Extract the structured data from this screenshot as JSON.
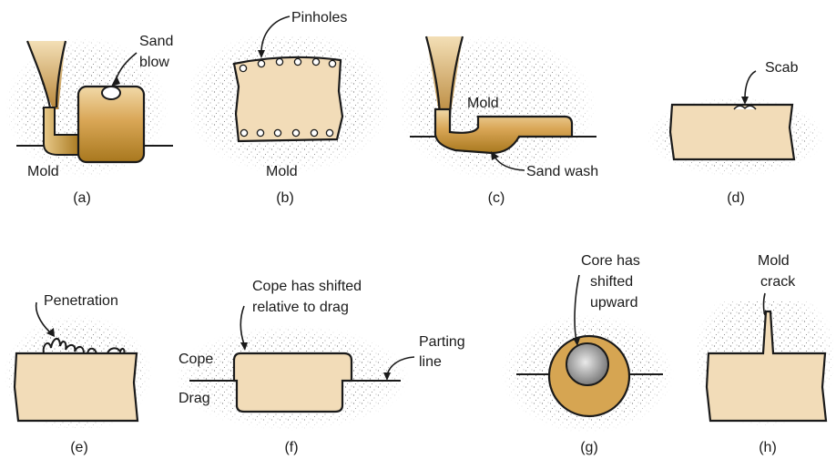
{
  "colors": {
    "casting": "#f2dcb8",
    "metal_light": "#e2b86c",
    "metal_dark": "#a8781e",
    "outline": "#1a1a1a",
    "sand_dot": "#555555",
    "core": "#9a9a9a"
  },
  "panels": [
    {
      "caption": "(a)",
      "labels": {
        "defect_line1": "Sand",
        "defect_line2": "blow",
        "mold": "Mold"
      }
    },
    {
      "caption": "(b)",
      "labels": {
        "defect": "Pinholes",
        "mold": "Mold"
      }
    },
    {
      "caption": "(c)",
      "labels": {
        "mold": "Mold",
        "defect": "Sand wash"
      }
    },
    {
      "caption": "(d)",
      "labels": {
        "defect": "Scab"
      }
    },
    {
      "caption": "(e)",
      "labels": {
        "defect": "Penetration"
      }
    },
    {
      "caption": "(f)",
      "labels": {
        "note_line1": "Cope has shifted",
        "note_line2": "relative to drag",
        "parting_line1": "Parting",
        "parting_line2": "line",
        "cope": "Cope",
        "drag": "Drag"
      }
    },
    {
      "caption": "(g)",
      "labels": {
        "note_line1": "Core has",
        "note_line2": "shifted",
        "note_line3": "upward"
      }
    },
    {
      "caption": "(h)",
      "labels": {
        "defect_line1": "Mold",
        "defect_line2": "crack"
      }
    }
  ]
}
